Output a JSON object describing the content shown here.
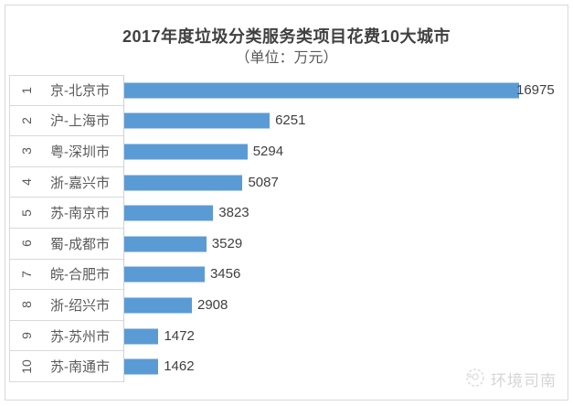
{
  "chart_data": {
    "type": "bar",
    "orientation": "horizontal",
    "title": "2017年度垃圾分类服务类项目花费10大城市",
    "subtitle": "（单位：万元）",
    "unit": "万元",
    "ranks": [
      "1",
      "2",
      "3",
      "4",
      "5",
      "6",
      "7",
      "8",
      "9",
      "10"
    ],
    "categories": [
      "京-北京市",
      "沪-上海市",
      "粤-深圳市",
      "浙-嘉兴市",
      "苏-南京市",
      "蜀-成都市",
      "皖-合肥市",
      "浙-绍兴市",
      "苏-苏州市",
      "苏-南通市"
    ],
    "values": [
      16975,
      6251,
      5294,
      5087,
      3823,
      3529,
      3456,
      2908,
      1472,
      1462
    ],
    "xlim": [
      0,
      17000
    ],
    "bar_color": "#5B9BD5",
    "grid": "category-separators-only",
    "legend": "none",
    "data_labels": "outside-end"
  },
  "watermark": {
    "text": "环境司南"
  }
}
